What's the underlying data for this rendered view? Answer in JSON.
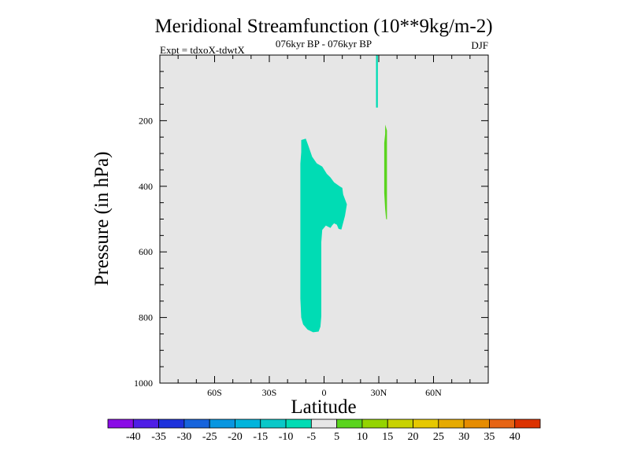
{
  "chart_data": {
    "type": "heatmap",
    "title": "Meridional Streamfunction (10**9kg/m-2)",
    "subtitle_left": "Expt = tdxoX-tdwtX",
    "subtitle_center": "076kyr BP - 076kyr BP",
    "subtitle_right": "DJF",
    "xlabel": "Latitude",
    "ylabel": "Pressure (in hPa)",
    "xlim": [
      -90,
      90
    ],
    "ylim": [
      1000,
      0
    ],
    "x_tick_labels": [
      {
        "value": -60,
        "label": "60S"
      },
      {
        "value": -30,
        "label": "30S"
      },
      {
        "value": 0,
        "label": "0"
      },
      {
        "value": 30,
        "label": "30N"
      },
      {
        "value": 60,
        "label": "60N"
      }
    ],
    "y_tick_labels": [
      {
        "value": 200,
        "label": "200"
      },
      {
        "value": 400,
        "label": "400"
      },
      {
        "value": 600,
        "label": "600"
      },
      {
        "value": 800,
        "label": "800"
      },
      {
        "value": 1000,
        "label": "1000"
      }
    ],
    "background_color": "#e6e6e6",
    "colorbar": {
      "labels": [
        "-40",
        "-35",
        "-30",
        "-25",
        "-20",
        "-15",
        "-10",
        "-5",
        "5",
        "10",
        "15",
        "20",
        "25",
        "30",
        "35",
        "40"
      ],
      "colors": [
        "#8a0ce6",
        "#4f1ee6",
        "#1e32dc",
        "#1764dc",
        "#0896e0",
        "#00b4dc",
        "#0ac8c8",
        "#00dcb4",
        "#e6e6e6",
        "#5ad41e",
        "#94d400",
        "#c8d200",
        "#e6c800",
        "#e6aa00",
        "#e68c00",
        "#e66414",
        "#dc3200"
      ]
    },
    "regions": [
      {
        "name": "negative-anomaly-cell",
        "color": "#00dcb4",
        "polygon": [
          [
            -12.5,
            259
          ],
          [
            -10,
            255
          ],
          [
            -8.5,
            278
          ],
          [
            -6.5,
            310
          ],
          [
            -4,
            330
          ],
          [
            -1,
            340
          ],
          [
            1.5,
            362
          ],
          [
            3.5,
            373
          ],
          [
            5.5,
            388
          ],
          [
            8.5,
            400
          ],
          [
            10,
            405
          ],
          [
            10.5,
            425
          ],
          [
            12.5,
            455
          ],
          [
            11.5,
            490
          ],
          [
            9.5,
            532
          ],
          [
            8,
            530
          ],
          [
            7,
            517
          ],
          [
            5.5,
            513
          ],
          [
            4.5,
            519
          ],
          [
            3.5,
            527
          ],
          [
            1,
            520
          ],
          [
            -1,
            533
          ],
          [
            -1.5,
            570
          ],
          [
            -1.5,
            650
          ],
          [
            -1.5,
            720
          ],
          [
            -1.5,
            796
          ],
          [
            -2,
            828
          ],
          [
            -3,
            843
          ],
          [
            -6,
            845
          ],
          [
            -9,
            837
          ],
          [
            -11.5,
            821
          ],
          [
            -12.5,
            800
          ],
          [
            -13,
            742
          ],
          [
            -13,
            647
          ],
          [
            -13,
            520
          ],
          [
            -13,
            409
          ],
          [
            -13,
            374
          ],
          [
            -13,
            331
          ],
          [
            -12.5,
            296
          ]
        ]
      },
      {
        "name": "negative-thin-strip",
        "color": "#00dcb4",
        "polygon": [
          [
            28.5,
            0
          ],
          [
            29.5,
            0
          ],
          [
            29.5,
            160
          ],
          [
            28.5,
            160
          ]
        ]
      },
      {
        "name": "positive-anomaly-strip",
        "color": "#5ad41e",
        "polygon": [
          [
            33.5,
            212
          ],
          [
            34.5,
            230
          ],
          [
            34.5,
            300
          ],
          [
            34.5,
            380
          ],
          [
            34.5,
            460
          ],
          [
            34.5,
            501
          ],
          [
            34,
            500
          ],
          [
            33.5,
            470
          ],
          [
            33,
            420
          ],
          [
            33,
            320
          ],
          [
            33,
            268
          ],
          [
            33.5,
            240
          ]
        ]
      }
    ]
  }
}
